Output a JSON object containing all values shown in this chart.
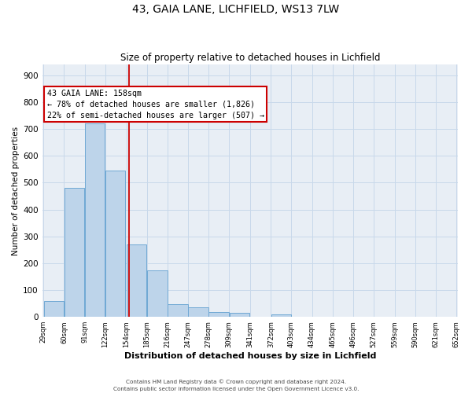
{
  "title": "43, GAIA LANE, LICHFIELD, WS13 7LW",
  "subtitle": "Size of property relative to detached houses in Lichfield",
  "xlabel": "Distribution of detached houses by size in Lichfield",
  "ylabel": "Number of detached properties",
  "bar_left_edges": [
    29,
    60,
    91,
    122,
    154,
    185,
    216,
    247,
    278,
    309,
    341,
    372,
    403,
    434,
    465,
    496,
    527,
    559,
    590,
    621
  ],
  "bar_widths": [
    31,
    31,
    31,
    31,
    31,
    31,
    31,
    31,
    31,
    31,
    31,
    31,
    31,
    31,
    31,
    31,
    31,
    31,
    31,
    31
  ],
  "bar_heights": [
    60,
    480,
    720,
    545,
    270,
    172,
    47,
    35,
    17,
    14,
    0,
    8,
    0,
    0,
    0,
    0,
    0,
    0,
    0,
    0
  ],
  "bar_color": "#bdd4ea",
  "bar_edge_color": "#6fa8d4",
  "property_line_x": 158,
  "property_line_color": "#cc0000",
  "annotation_text": "43 GAIA LANE: 158sqm\n← 78% of detached houses are smaller (1,826)\n22% of semi-detached houses are larger (507) →",
  "ylim": [
    0,
    940
  ],
  "yticks": [
    0,
    100,
    200,
    300,
    400,
    500,
    600,
    700,
    800,
    900
  ],
  "xtick_labels": [
    "29sqm",
    "60sqm",
    "91sqm",
    "122sqm",
    "154sqm",
    "185sqm",
    "216sqm",
    "247sqm",
    "278sqm",
    "309sqm",
    "341sqm",
    "372sqm",
    "403sqm",
    "434sqm",
    "465sqm",
    "496sqm",
    "527sqm",
    "559sqm",
    "590sqm",
    "621sqm",
    "652sqm"
  ],
  "grid_color": "#c8d8ea",
  "bg_color": "#e8eef5",
  "footer_line1": "Contains HM Land Registry data © Crown copyright and database right 2024.",
  "footer_line2": "Contains public sector information licensed under the Open Government Licence v3.0."
}
